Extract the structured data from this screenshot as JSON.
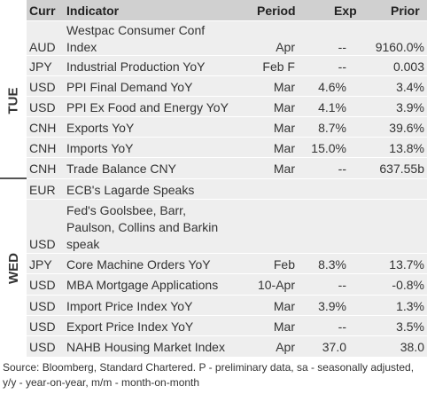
{
  "headers": {
    "curr": "Curr",
    "indicator": "Indicator",
    "period": "Period",
    "exp": "Exp",
    "prior": "Prior"
  },
  "days": [
    {
      "label": "TUE"
    },
    {
      "label": "WED"
    }
  ],
  "rows": [
    {
      "curr": "AUD",
      "indicator": [
        "Westpac Consumer Conf",
        "Index"
      ],
      "period": "Apr",
      "exp": "--",
      "prior": "9160.0%"
    },
    {
      "curr": "JPY",
      "indicator": [
        "Industrial Production YoY"
      ],
      "period": "Feb F",
      "exp": "--",
      "prior": "0.003"
    },
    {
      "curr": "USD",
      "indicator": [
        "PPI Final Demand YoY"
      ],
      "period": "Mar",
      "exp": "4.6%",
      "prior": "3.4%"
    },
    {
      "curr": "USD",
      "indicator": [
        "PPI Ex Food and Energy YoY"
      ],
      "period": "Mar",
      "exp": "4.1%",
      "prior": "3.9%"
    },
    {
      "curr": "CNH",
      "indicator": [
        "Exports YoY"
      ],
      "period": "Mar",
      "exp": "8.7%",
      "prior": "39.6%"
    },
    {
      "curr": "CNH",
      "indicator": [
        "Imports YoY"
      ],
      "period": "Mar",
      "exp": "15.0%",
      "prior": "13.8%"
    },
    {
      "curr": "CNH",
      "indicator": [
        "Trade Balance CNY"
      ],
      "period": "Mar",
      "exp": "--",
      "prior": "637.55b"
    },
    {
      "curr": "EUR",
      "indicator": [
        "ECB's Lagarde Speaks"
      ],
      "period": "",
      "exp": "",
      "prior": ""
    },
    {
      "curr": "USD",
      "indicator": [
        "Fed's Goolsbee, Barr,",
        "Paulson, Collins and Barkin",
        "speak"
      ],
      "period": "",
      "exp": "",
      "prior": ""
    },
    {
      "curr": "JPY",
      "indicator": [
        "Core Machine Orders YoY"
      ],
      "period": "Feb",
      "exp": "8.3%",
      "prior": "13.7%"
    },
    {
      "curr": "USD",
      "indicator": [
        "MBA Mortgage Applications"
      ],
      "period": "10-Apr",
      "exp": "--",
      "prior": "-0.8%"
    },
    {
      "curr": "USD",
      "indicator": [
        "Import Price Index YoY"
      ],
      "period": "Mar",
      "exp": "3.9%",
      "prior": "1.3%"
    },
    {
      "curr": "USD",
      "indicator": [
        "Export Price Index YoY"
      ],
      "period": "Mar",
      "exp": "--",
      "prior": "3.5%"
    },
    {
      "curr": "USD",
      "indicator": [
        "NAHB Housing Market Index"
      ],
      "period": "Apr",
      "exp": "37.0",
      "prior": "38.0"
    }
  ],
  "footnote": "Source: Bloomberg, Standard Chartered. P - preliminary data, sa - seasonally adjusted, y/y - year-on-year, m/m - month-on-month"
}
